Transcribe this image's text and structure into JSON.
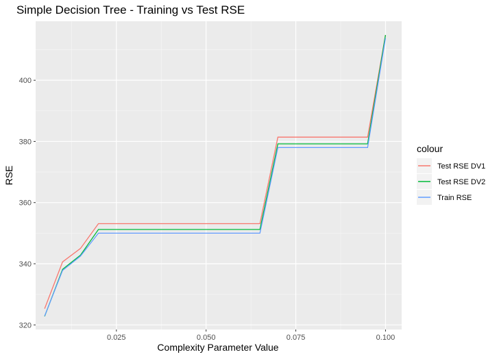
{
  "chart_data": {
    "type": "line",
    "title": "Simple Decision Tree - Training vs Test RSE",
    "xlabel": "Complexity Parameter Value",
    "ylabel": "RSE",
    "xlim": [
      0.0025,
      0.1045
    ],
    "ylim": [
      318.5,
      419.3
    ],
    "x_ticks": [
      0.025,
      0.05,
      0.075,
      0.1
    ],
    "x_tick_labels": [
      "0.025",
      "0.050",
      "0.075",
      "0.100"
    ],
    "y_ticks": [
      320,
      340,
      360,
      380,
      400
    ],
    "y_tick_labels": [
      "320",
      "340",
      "360",
      "380",
      "400"
    ],
    "grid": true,
    "legend": {
      "title": "colour",
      "position": "right"
    },
    "x": [
      0.005,
      0.01,
      0.015,
      0.02,
      0.025,
      0.03,
      0.035,
      0.04,
      0.045,
      0.05,
      0.055,
      0.06,
      0.065,
      0.07,
      0.075,
      0.08,
      0.085,
      0.09,
      0.095,
      0.1
    ],
    "series": [
      {
        "name": "Test RSE DV1",
        "color": "#F8766D",
        "values": [
          325.3,
          340.6,
          345.0,
          353.1,
          353.1,
          353.1,
          353.1,
          353.1,
          353.1,
          353.1,
          353.1,
          353.1,
          353.1,
          381.4,
          381.4,
          381.4,
          381.4,
          381.4,
          381.4,
          414.8
        ]
      },
      {
        "name": "Test RSE DV2",
        "color": "#00BA38",
        "values": [
          322.8,
          338.2,
          342.8,
          351.2,
          351.2,
          351.2,
          351.2,
          351.2,
          351.2,
          351.2,
          351.2,
          351.2,
          351.2,
          379.2,
          379.2,
          379.2,
          379.2,
          379.2,
          379.2,
          414.8
        ]
      },
      {
        "name": "Train RSE",
        "color": "#619CFF",
        "values": [
          322.9,
          337.8,
          342.5,
          350.0,
          350.0,
          350.0,
          350.0,
          350.0,
          350.0,
          350.0,
          350.0,
          350.0,
          350.0,
          378.0,
          378.0,
          378.0,
          378.0,
          378.0,
          378.0,
          413.8
        ]
      }
    ]
  }
}
